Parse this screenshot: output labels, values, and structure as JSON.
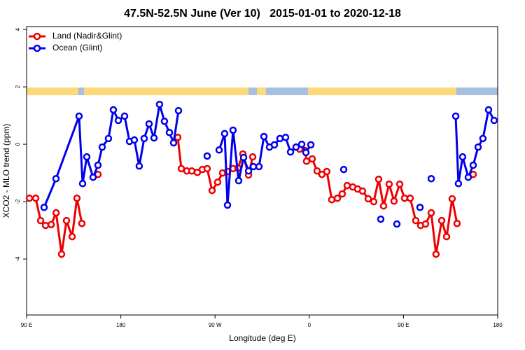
{
  "chart_data": {
    "type": "line",
    "title": "47.5N-52.5N June (Ver 10)   2015-01-01 to 2020-12-18",
    "x_label": "Longitude (deg E)",
    "y_label": "XCO2 - MLO trend (ppm)",
    "xlim": [
      90,
      540
    ],
    "xticks": [
      {
        "value": 90,
        "label": "90 E"
      },
      {
        "value": 180,
        "label": "180"
      },
      {
        "value": 270,
        "label": "90 W"
      },
      {
        "value": 360,
        "label": "0"
      },
      {
        "value": 450,
        "label": "90 E"
      },
      {
        "value": 540,
        "label": "180"
      }
    ],
    "ylim": [
      -5.95,
      4.1
    ],
    "yticks": [
      -4,
      -2,
      0,
      2,
      4
    ],
    "legend": "top-left",
    "series": [
      {
        "name": "Land (Nadir&Glint)",
        "color": "#ee0000",
        "x": [
          92.7,
          98.7,
          103.4,
          108.1,
          113.5,
          118.2,
          123.4,
          128.1,
          133.5,
          138.1,
          142.8,
          null,
          158.2,
          null,
          234.4,
          237.8,
          243.1,
          247.8,
          253.1,
          257.8,
          262.5,
          267.2,
          272.5,
          277.2,
          281.9,
          287.2,
          291.9,
          296.6,
          302.0,
          306.0,
          null,
          350.8,
          356.1,
          357.4,
          362.8,
          367.5,
          372.1,
          376.8,
          381.5,
          386.9,
          391.5,
          396.2,
          401.6,
          406.2,
          410.9,
          416.3,
          421.6,
          426.3,
          431.0,
          436.3,
          441.0,
          446.4,
          451.0,
          456.4,
          461.7,
          466.4,
          471.1,
          476.5,
          481.1,
          486.5,
          491.2,
          496.5,
          501.2,
          null,
          516.6
        ],
        "values": [
          -1.88,
          -1.88,
          -2.66,
          -2.83,
          -2.8,
          -2.39,
          -3.83,
          -2.66,
          -3.22,
          -1.88,
          -2.76,
          null,
          -1.05,
          null,
          0.24,
          -0.85,
          -0.93,
          -0.93,
          -0.98,
          -0.88,
          -0.85,
          -1.61,
          -1.32,
          -1.0,
          -0.95,
          -0.85,
          -0.83,
          -0.34,
          -1.07,
          -0.44,
          null,
          -0.17,
          -0.22,
          -0.59,
          -0.51,
          -0.93,
          -1.05,
          -0.95,
          -1.93,
          -1.88,
          -1.73,
          -1.44,
          -1.49,
          -1.56,
          -1.63,
          -1.9,
          -2.0,
          -1.22,
          -2.15,
          -1.39,
          -1.98,
          -1.39,
          -1.88,
          -1.88,
          -2.66,
          -2.83,
          -2.78,
          -2.39,
          -3.83,
          -2.66,
          -3.22,
          -1.9,
          -2.76,
          null,
          -1.05
        ]
      },
      {
        "name": "Ocean (Glint)",
        "color": "#0000ee",
        "x": [
          106.7,
          118.1,
          140.1,
          143.5,
          147.5,
          153.5,
          158.2,
          162.2,
          168.2,
          172.9,
          177.6,
          183.6,
          188.3,
          192.9,
          197.6,
          202.3,
          207.0,
          211.7,
          217.0,
          221.7,
          226.4,
          230.4,
          235.1,
          null,
          262.5,
          null,
          273.9,
          279.2,
          281.9,
          287.2,
          292.6,
          297.3,
          302.0,
          306.6,
          312.0,
          316.7,
          322.0,
          326.7,
          332.0,
          337.4,
          342.1,
          347.4,
          352.8,
          356.8,
          361.5,
          null,
          392.9,
          null,
          428.3,
          null,
          443.7,
          null,
          465.8,
          null,
          476.5,
          null,
          499.9,
          502.5,
          506.5,
          511.9,
          516.6,
          521.3,
          525.9,
          531.3,
          536.6
        ],
        "values": [
          -2.2,
          -1.2,
          0.98,
          -1.37,
          -0.44,
          -1.15,
          -0.73,
          -0.1,
          0.2,
          1.2,
          0.83,
          0.98,
          0.1,
          0.15,
          -0.76,
          0.2,
          0.71,
          0.22,
          1.39,
          0.8,
          0.41,
          0.05,
          1.17,
          null,
          -0.41,
          null,
          -0.2,
          0.37,
          -2.12,
          0.49,
          -1.27,
          -0.46,
          -0.93,
          -0.78,
          -0.78,
          0.27,
          -0.1,
          -0.02,
          0.2,
          0.24,
          -0.27,
          -0.1,
          0.0,
          -0.29,
          -0.02,
          null,
          -0.88,
          null,
          -2.61,
          null,
          -2.78,
          null,
          -2.2,
          null,
          -1.2,
          null,
          0.98,
          -1.37,
          -0.44,
          -1.15,
          -0.73,
          -0.1,
          0.2,
          1.2,
          0.83
        ]
      }
    ]
  }
}
